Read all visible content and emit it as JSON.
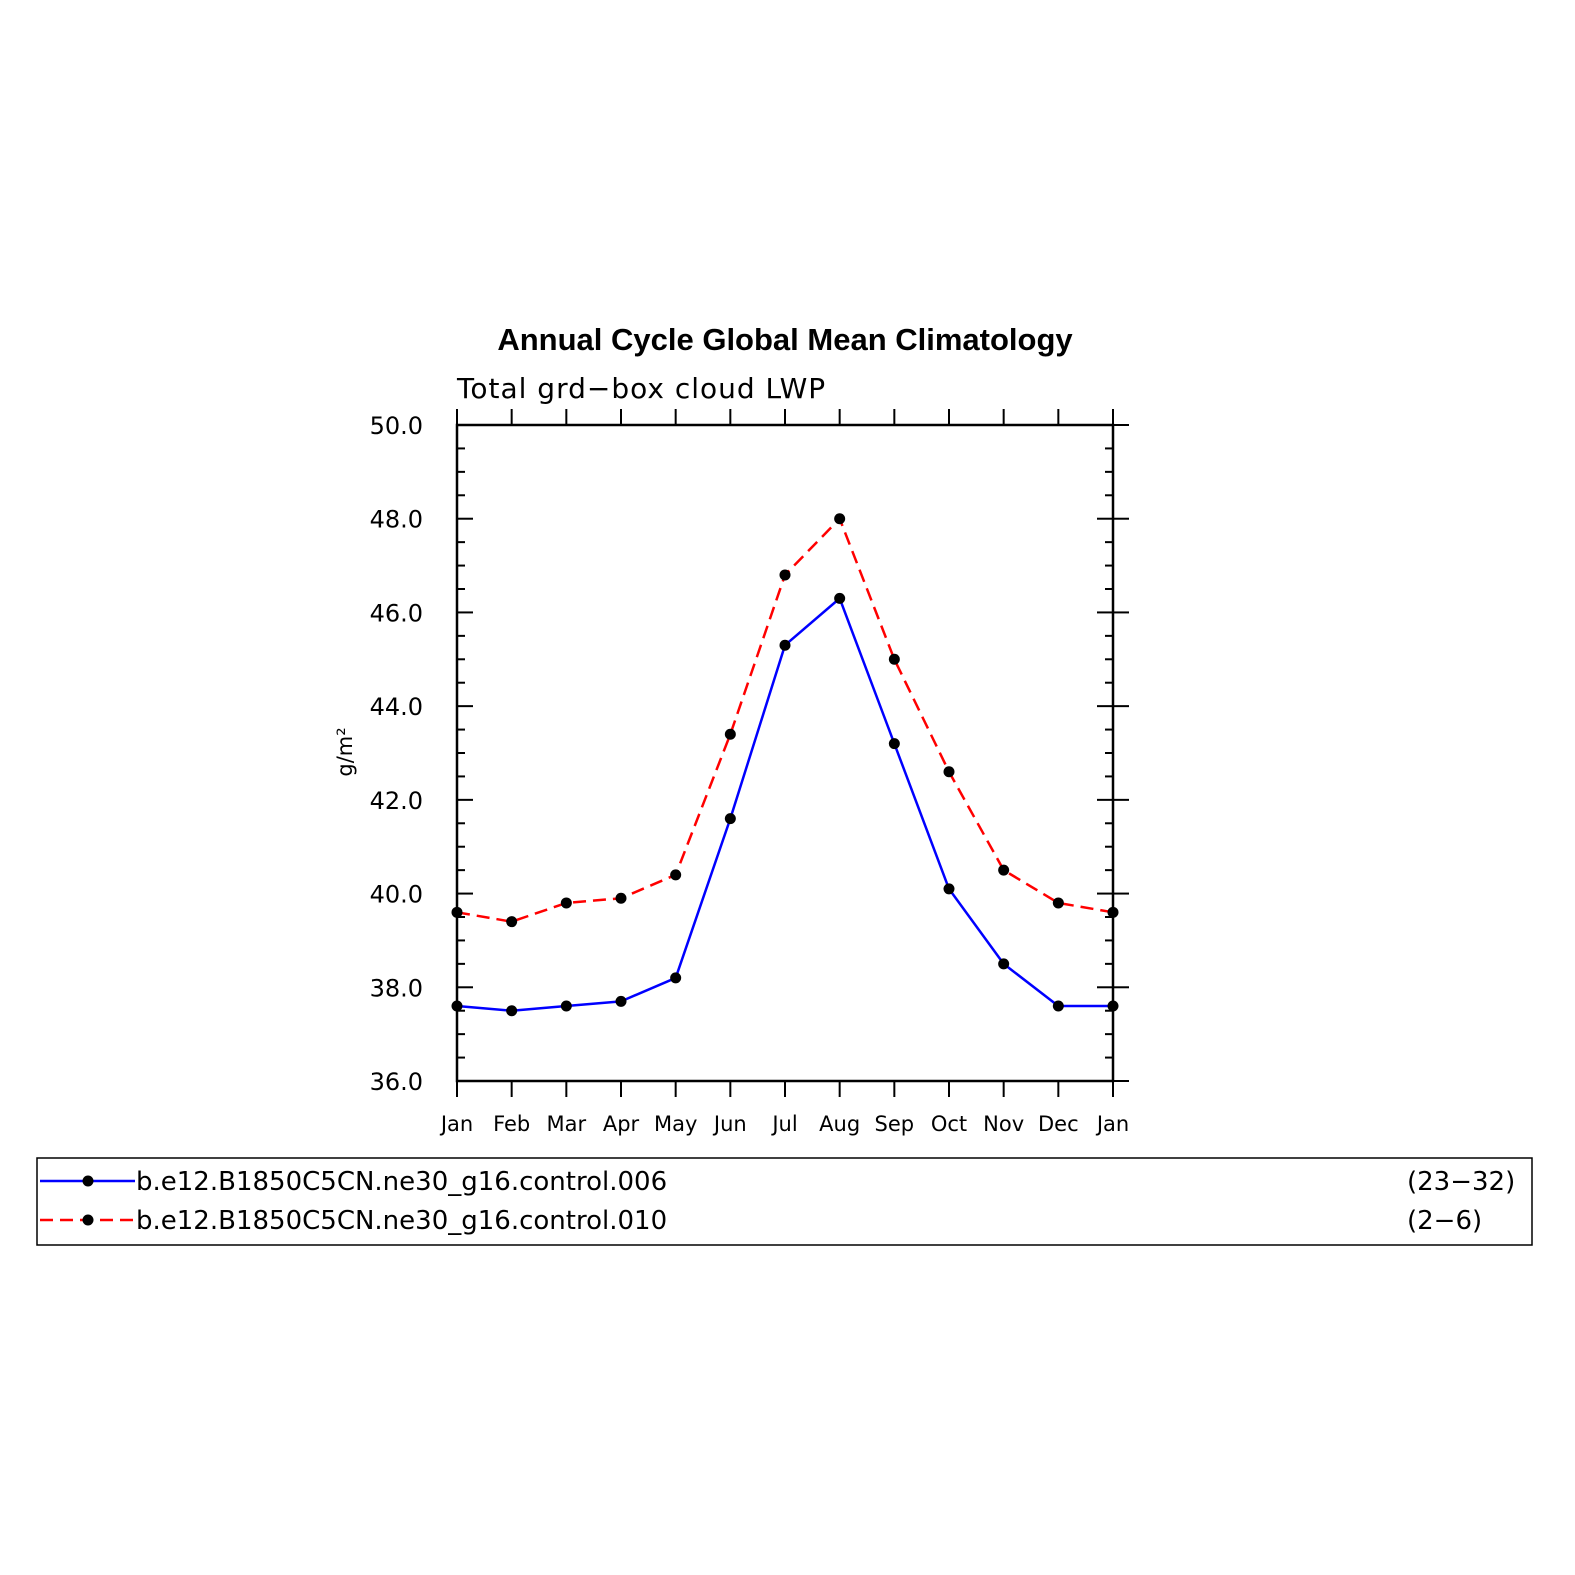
{
  "chart_data": {
    "type": "line",
    "title": "Annual Cycle Global Mean Climatology",
    "subtitle": "Total grd−box cloud LWP",
    "ylabel": "g/m²",
    "xlabel": "",
    "categories": [
      "Jan",
      "Feb",
      "Mar",
      "Apr",
      "May",
      "Jun",
      "Jul",
      "Aug",
      "Sep",
      "Oct",
      "Nov",
      "Dec",
      "Jan"
    ],
    "ylim": [
      36.0,
      50.0
    ],
    "yticks": [
      "36.0",
      "38.0",
      "40.0",
      "42.0",
      "44.0",
      "46.0",
      "48.0",
      "50.0"
    ],
    "grid": false,
    "legend_position": "bottom",
    "series": [
      {
        "name": "b.e12.B1850C5CN.ne30_g16.control.006",
        "years": "(23−32)",
        "color": "#0000ff",
        "dash": "solid",
        "values": [
          37.6,
          37.5,
          37.6,
          37.7,
          38.2,
          41.6,
          45.3,
          46.3,
          43.2,
          40.1,
          38.5,
          37.6,
          37.6
        ]
      },
      {
        "name": "b.e12.B1850C5CN.ne30_g16.control.010",
        "years": "(2−6)",
        "color": "#ff0000",
        "dash": "dashed",
        "values": [
          39.6,
          39.4,
          39.8,
          39.9,
          40.4,
          43.4,
          46.8,
          48.0,
          45.0,
          42.6,
          40.5,
          39.8,
          39.6
        ]
      }
    ]
  }
}
